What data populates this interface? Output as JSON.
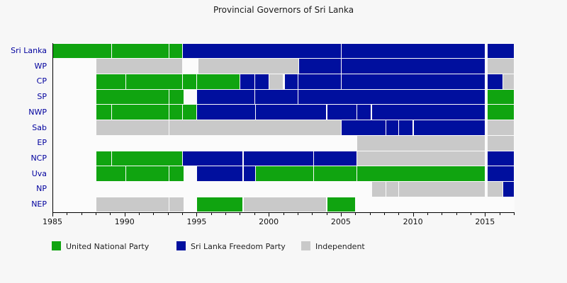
{
  "chart_data": {
    "type": "bar",
    "subtype": "gantt-timeline",
    "title": "Provincial Governors of Sri Lanka",
    "x_axis": {
      "min": 1985,
      "max": 2017,
      "major_ticks": [
        1985,
        1990,
        1995,
        2000,
        2005,
        2010,
        2015
      ],
      "minor_tick_step": 1,
      "grid": false
    },
    "colors": {
      "UNP": "#10a410",
      "SLFP": "#000f9e",
      "IND": "#c9c9c9",
      "axis_label": "#00009e",
      "background": "#f7f7f7"
    },
    "legend": [
      {
        "party": "UNP",
        "label": "United National Party"
      },
      {
        "party": "SLFP",
        "label": "Sri Lanka Freedom Party"
      },
      {
        "party": "IND",
        "label": "Independent"
      }
    ],
    "legend_position": "bottom",
    "rows": [
      {
        "label": "Sri Lanka",
        "segments": [
          {
            "start": 1985.0,
            "end": 1989.1,
            "party": "UNP"
          },
          {
            "start": 1989.1,
            "end": 1993.05,
            "party": "UNP"
          },
          {
            "start": 1993.05,
            "end": 1994.0,
            "party": "UNP"
          },
          {
            "start": 1994.0,
            "end": 2005.0,
            "party": "SLFP"
          },
          {
            "start": 2005.0,
            "end": 2015.0,
            "party": "SLFP"
          },
          {
            "start": 2015.15,
            "end": 2017.0,
            "party": "SLFP"
          }
        ]
      },
      {
        "label": "WP",
        "segments": [
          {
            "start": 1988.0,
            "end": 1994.0,
            "party": "IND"
          },
          {
            "start": 1995.1,
            "end": 2002.05,
            "party": "IND"
          },
          {
            "start": 2002.05,
            "end": 2005.0,
            "party": "SLFP"
          },
          {
            "start": 2005.0,
            "end": 2015.0,
            "party": "SLFP"
          },
          {
            "start": 2015.15,
            "end": 2017.0,
            "party": "IND"
          }
        ]
      },
      {
        "label": "CP",
        "segments": [
          {
            "start": 1988.0,
            "end": 1990.05,
            "party": "UNP"
          },
          {
            "start": 1990.05,
            "end": 1994.0,
            "party": "UNP"
          },
          {
            "start": 1994.0,
            "end": 1995.0,
            "party": "UNP"
          },
          {
            "start": 1995.0,
            "end": 1998.0,
            "party": "UNP"
          },
          {
            "start": 1998.0,
            "end": 1999.0,
            "party": "SLFP"
          },
          {
            "start": 1999.0,
            "end": 2000.0,
            "party": "SLFP"
          },
          {
            "start": 2000.0,
            "end": 2001.0,
            "party": "IND"
          },
          {
            "start": 2001.05,
            "end": 2002.0,
            "party": "SLFP"
          },
          {
            "start": 2002.0,
            "end": 2005.0,
            "party": "SLFP"
          },
          {
            "start": 2005.0,
            "end": 2015.0,
            "party": "SLFP"
          },
          {
            "start": 2015.15,
            "end": 2016.2,
            "party": "SLFP"
          },
          {
            "start": 2016.2,
            "end": 2017.0,
            "party": "IND"
          }
        ]
      },
      {
        "label": "SP",
        "segments": [
          {
            "start": 1988.0,
            "end": 1993.05,
            "party": "UNP"
          },
          {
            "start": 1993.05,
            "end": 1994.1,
            "party": "UNP"
          },
          {
            "start": 1995.0,
            "end": 1999.0,
            "party": "SLFP"
          },
          {
            "start": 1999.0,
            "end": 2002.0,
            "party": "SLFP"
          },
          {
            "start": 2002.0,
            "end": 2015.0,
            "party": "SLFP"
          },
          {
            "start": 2015.15,
            "end": 2017.0,
            "party": "UNP"
          }
        ]
      },
      {
        "label": "NWP",
        "segments": [
          {
            "start": 1988.0,
            "end": 1989.1,
            "party": "UNP"
          },
          {
            "start": 1989.1,
            "end": 1993.05,
            "party": "UNP"
          },
          {
            "start": 1993.05,
            "end": 1994.0,
            "party": "UNP"
          },
          {
            "start": 1994.0,
            "end": 1995.0,
            "party": "UNP"
          },
          {
            "start": 1995.0,
            "end": 1999.05,
            "party": "SLFP"
          },
          {
            "start": 1999.05,
            "end": 2004.0,
            "party": "SLFP"
          },
          {
            "start": 2004.0,
            "end": 2006.1,
            "party": "SLFP"
          },
          {
            "start": 2006.1,
            "end": 2007.1,
            "party": "SLFP"
          },
          {
            "start": 2007.1,
            "end": 2015.0,
            "party": "SLFP"
          },
          {
            "start": 2015.15,
            "end": 2017.0,
            "party": "UNP"
          }
        ]
      },
      {
        "label": "Sab",
        "segments": [
          {
            "start": 1988.0,
            "end": 1993.05,
            "party": "IND"
          },
          {
            "start": 1993.05,
            "end": 2005.0,
            "party": "IND"
          },
          {
            "start": 2005.0,
            "end": 2008.1,
            "party": "SLFP"
          },
          {
            "start": 2008.1,
            "end": 2009.0,
            "party": "SLFP"
          },
          {
            "start": 2009.0,
            "end": 2010.0,
            "party": "SLFP"
          },
          {
            "start": 2010.0,
            "end": 2015.0,
            "party": "SLFP"
          },
          {
            "start": 2015.15,
            "end": 2017.0,
            "party": "IND"
          }
        ]
      },
      {
        "label": "EP",
        "segments": [
          {
            "start": 2006.1,
            "end": 2015.0,
            "party": "IND"
          },
          {
            "start": 2015.15,
            "end": 2017.0,
            "party": "IND"
          }
        ]
      },
      {
        "label": "NCP",
        "segments": [
          {
            "start": 1988.0,
            "end": 1989.1,
            "party": "UNP"
          },
          {
            "start": 1989.1,
            "end": 1994.0,
            "party": "UNP"
          },
          {
            "start": 1994.0,
            "end": 1998.2,
            "party": "SLFP"
          },
          {
            "start": 1998.2,
            "end": 2003.1,
            "party": "SLFP"
          },
          {
            "start": 2003.1,
            "end": 2006.1,
            "party": "SLFP"
          },
          {
            "start": 2006.1,
            "end": 2015.0,
            "party": "IND"
          },
          {
            "start": 2015.15,
            "end": 2017.0,
            "party": "SLFP"
          }
        ]
      },
      {
        "label": "Uva",
        "segments": [
          {
            "start": 1988.0,
            "end": 1990.05,
            "party": "UNP"
          },
          {
            "start": 1990.05,
            "end": 1993.05,
            "party": "UNP"
          },
          {
            "start": 1993.05,
            "end": 1994.1,
            "party": "UNP"
          },
          {
            "start": 1995.0,
            "end": 1998.2,
            "party": "SLFP"
          },
          {
            "start": 1998.2,
            "end": 1999.05,
            "party": "SLFP"
          },
          {
            "start": 1999.05,
            "end": 2003.1,
            "party": "UNP"
          },
          {
            "start": 2003.1,
            "end": 2006.1,
            "party": "UNP"
          },
          {
            "start": 2006.1,
            "end": 2015.0,
            "party": "UNP"
          },
          {
            "start": 2015.15,
            "end": 2017.0,
            "party": "SLFP"
          }
        ]
      },
      {
        "label": "NP",
        "segments": [
          {
            "start": 2007.1,
            "end": 2008.1,
            "party": "IND"
          },
          {
            "start": 2008.1,
            "end": 2009.0,
            "party": "IND"
          },
          {
            "start": 2009.0,
            "end": 2015.0,
            "party": "IND"
          },
          {
            "start": 2015.15,
            "end": 2016.2,
            "party": "IND"
          },
          {
            "start": 2016.2,
            "end": 2017.0,
            "party": "SLFP"
          }
        ]
      },
      {
        "label": "NEP",
        "segments": [
          {
            "start": 1988.0,
            "end": 1993.05,
            "party": "IND"
          },
          {
            "start": 1993.05,
            "end": 1994.1,
            "party": "IND"
          },
          {
            "start": 1995.0,
            "end": 1998.2,
            "party": "UNP"
          },
          {
            "start": 1998.2,
            "end": 2004.0,
            "party": "IND"
          },
          {
            "start": 2004.0,
            "end": 2006.0,
            "party": "UNP"
          }
        ]
      }
    ]
  }
}
